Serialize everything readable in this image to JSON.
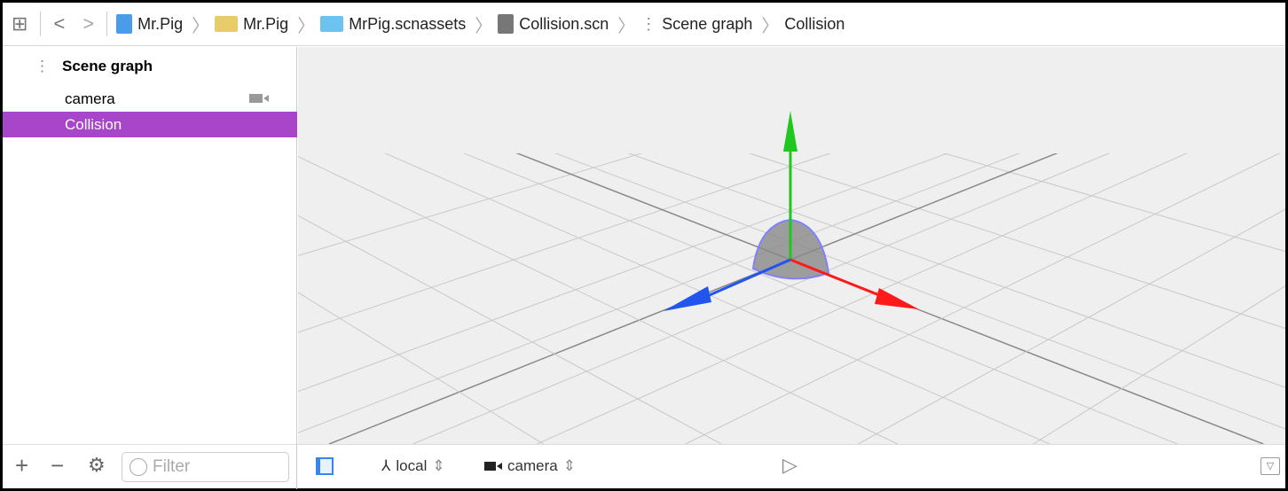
{
  "toolbar": {
    "breadcrumbs": [
      {
        "label": "Mr.Pig",
        "icon": "project-icon"
      },
      {
        "label": "Mr.Pig",
        "icon": "folder-icon"
      },
      {
        "label": "MrPig.scnassets",
        "icon": "folder-blue-icon"
      },
      {
        "label": "Collision.scn",
        "icon": "scene-file-icon"
      },
      {
        "label": "Scene graph",
        "icon": "scene-graph-icon"
      },
      {
        "label": "Collision"
      }
    ]
  },
  "sidebar": {
    "title": "Scene graph",
    "items": [
      {
        "label": "camera",
        "icon": "camera-icon"
      },
      {
        "label": "Collision",
        "selected": true
      }
    ],
    "filter_placeholder": "Filter",
    "selection_color": "#a846c9"
  },
  "bottom": {
    "space": "local",
    "point_of_view": "camera"
  },
  "axes_colors": {
    "x": "#ff1a1a",
    "y": "#1ec81e",
    "z": "#2255ee"
  }
}
